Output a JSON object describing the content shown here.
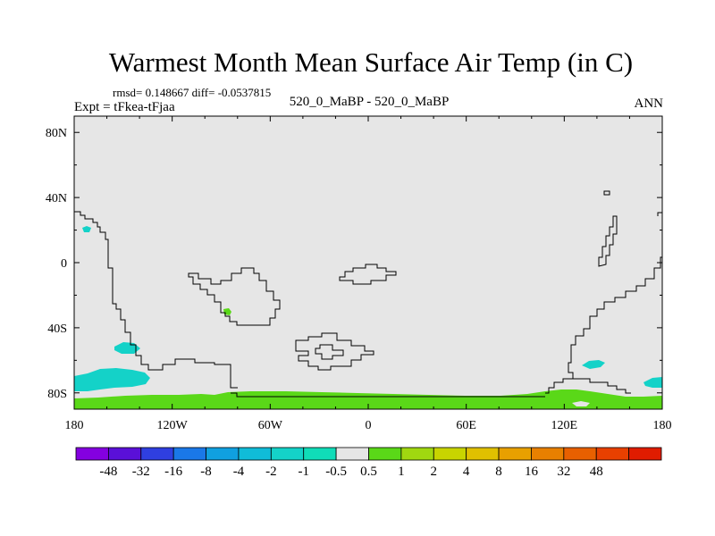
{
  "chart_data": {
    "type": "heatmap",
    "title": "Warmest Month Mean Surface Air Temp (in C)",
    "stats_text": "rmsd= 0.148667 diff= -0.0537815",
    "experiment_label": "Expt = tFkea-tFjaa",
    "center_label": "520_0_MaBP - 520_0_MaBP",
    "season_label": "ANN",
    "xlim": [
      -180,
      180
    ],
    "ylim": [
      -90,
      90
    ],
    "x_ticks": [
      {
        "value": -180,
        "label": "180"
      },
      {
        "value": -120,
        "label": "120W"
      },
      {
        "value": -60,
        "label": "60W"
      },
      {
        "value": 0,
        "label": "0"
      },
      {
        "value": 60,
        "label": "60E"
      },
      {
        "value": 120,
        "label": "120E"
      },
      {
        "value": 180,
        "label": "180"
      }
    ],
    "y_ticks": [
      {
        "value": 80,
        "label": "80N"
      },
      {
        "value": 40,
        "label": "40N"
      },
      {
        "value": 0,
        "label": "0"
      },
      {
        "value": -40,
        "label": "40S"
      },
      {
        "value": -80,
        "label": "80S"
      }
    ],
    "background_color": "#e6e6e6",
    "colorbar": {
      "colors": [
        "#8400e0",
        "#5a10d8",
        "#2f3fe0",
        "#1a78e8",
        "#10a0e0",
        "#10bcd8",
        "#14d2c8",
        "#10dcb8",
        "#e6e6e6",
        "#5ad818",
        "#a0d810",
        "#c8d400",
        "#e0c000",
        "#e8a000",
        "#e88000",
        "#e86000",
        "#e84000",
        "#e01c00"
      ],
      "labels": [
        "-48",
        "-32",
        "-16",
        "-8",
        "-4",
        "-2",
        "-1",
        "-0.5",
        "0.5",
        "1",
        "2",
        "4",
        "8",
        "16",
        "32",
        "48"
      ]
    },
    "regions": [
      {
        "sign": "negative",
        "color": "#14d2c8",
        "note": "North Pacific",
        "lon": -174,
        "lat": 20
      },
      {
        "sign": "positive",
        "color": "#5ad818",
        "note": "South America",
        "lon": -85,
        "lat": -28
      },
      {
        "sign": "negative",
        "color": "#14d2c8",
        "note": "South Pacific",
        "lon": -145,
        "lat": -50
      },
      {
        "sign": "negative",
        "color": "#14d2c8",
        "note": "South Pacific high latitude",
        "lon": -157,
        "lat": -72
      },
      {
        "sign": "negative",
        "color": "#14d2c8",
        "note": "South of Australia",
        "lon": 136,
        "lat": -62
      },
      {
        "sign": "negative",
        "color": "#14d2c8",
        "note": "Southwest Pacific",
        "lon": 177,
        "lat": -74
      },
      {
        "sign": "positive",
        "color": "#5ad818",
        "note": "Southern Ocean band",
        "lon": 0,
        "lat": -84
      }
    ]
  }
}
